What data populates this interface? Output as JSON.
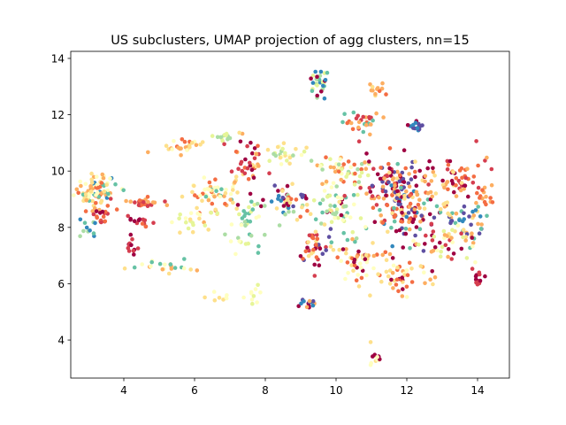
{
  "chart_data": {
    "type": "scatter",
    "title": "US subclusters, UMAP projection of agg clusters, nn=15",
    "xlabel": "",
    "ylabel": "",
    "xlim": [
      2.5,
      14.9
    ],
    "ylim": [
      2.65,
      14.25
    ],
    "x_ticks": [
      4,
      6,
      8,
      10,
      12,
      14
    ],
    "y_ticks": [
      4,
      6,
      8,
      10,
      12,
      14
    ],
    "x_tick_labels": [
      "4",
      "6",
      "8",
      "10",
      "12",
      "14"
    ],
    "y_tick_labels": [
      "4",
      "6",
      "8",
      "10",
      "12",
      "14"
    ],
    "grid": false,
    "legend": "none",
    "palette": "Spectral",
    "colors": [
      "#9e0142",
      "#d53e4f",
      "#f46d43",
      "#fdae61",
      "#fee08b",
      "#ffffbf",
      "#e6f598",
      "#abdda4",
      "#66c2a5",
      "#3288bd",
      "#5e4fa2"
    ],
    "clusters": [
      {
        "x": 3.2,
        "y": 9.3,
        "sx": 0.3,
        "sy": 0.3,
        "n": 90,
        "colors": [
          4,
          5,
          3,
          8,
          9,
          2
        ]
      },
      {
        "x": 3.0,
        "y": 7.9,
        "sx": 0.15,
        "sy": 0.15,
        "n": 12,
        "colors": [
          8,
          9,
          7
        ]
      },
      {
        "x": 3.4,
        "y": 8.4,
        "sx": 0.15,
        "sy": 0.2,
        "n": 15,
        "colors": [
          0,
          1,
          2
        ]
      },
      {
        "x": 4.5,
        "y": 8.9,
        "sx": 0.25,
        "sy": 0.1,
        "n": 25,
        "colors": [
          2,
          1,
          3
        ]
      },
      {
        "x": 4.5,
        "y": 8.2,
        "sx": 0.15,
        "sy": 0.1,
        "n": 15,
        "colors": [
          1,
          0,
          2
        ]
      },
      {
        "x": 4.2,
        "y": 7.4,
        "sx": 0.1,
        "sy": 0.15,
        "n": 12,
        "colors": [
          0,
          1
        ]
      },
      {
        "x": 5.2,
        "y": 6.6,
        "sx": 0.5,
        "sy": 0.1,
        "n": 22,
        "colors": [
          5,
          4,
          3,
          8
        ]
      },
      {
        "x": 5.7,
        "y": 10.9,
        "sx": 0.3,
        "sy": 0.15,
        "n": 25,
        "colors": [
          3,
          4,
          2,
          5
        ]
      },
      {
        "x": 6.8,
        "y": 11.2,
        "sx": 0.15,
        "sy": 0.1,
        "n": 12,
        "colors": [
          7,
          6
        ]
      },
      {
        "x": 6.4,
        "y": 9.1,
        "sx": 0.35,
        "sy": 0.35,
        "n": 55,
        "colors": [
          2,
          3,
          4,
          5,
          8
        ]
      },
      {
        "x": 5.9,
        "y": 8.2,
        "sx": 0.35,
        "sy": 0.25,
        "n": 20,
        "colors": [
          5,
          6,
          4
        ]
      },
      {
        "x": 6.6,
        "y": 5.5,
        "sx": 0.2,
        "sy": 0.1,
        "n": 8,
        "colors": [
          4,
          5
        ]
      },
      {
        "x": 7.4,
        "y": 10.3,
        "sx": 0.3,
        "sy": 0.5,
        "n": 45,
        "colors": [
          1,
          0,
          2,
          3,
          4
        ]
      },
      {
        "x": 7.5,
        "y": 8.0,
        "sx": 0.3,
        "sy": 0.5,
        "n": 35,
        "colors": [
          6,
          7,
          5,
          8
        ]
      },
      {
        "x": 7.7,
        "y": 5.6,
        "sx": 0.15,
        "sy": 0.15,
        "n": 10,
        "colors": [
          6,
          5
        ]
      },
      {
        "x": 8.6,
        "y": 9.0,
        "sx": 0.35,
        "sy": 0.4,
        "n": 50,
        "colors": [
          0,
          9,
          10,
          2,
          4,
          7
        ]
      },
      {
        "x": 8.4,
        "y": 10.6,
        "sx": 0.3,
        "sy": 0.2,
        "n": 25,
        "colors": [
          6,
          7,
          5,
          4
        ]
      },
      {
        "x": 9.5,
        "y": 13.1,
        "sx": 0.15,
        "sy": 0.25,
        "n": 30,
        "colors": [
          8,
          6,
          0,
          9,
          7
        ]
      },
      {
        "x": 9.2,
        "y": 5.3,
        "sx": 0.15,
        "sy": 0.1,
        "n": 15,
        "colors": [
          0,
          3,
          9,
          10
        ]
      },
      {
        "x": 9.4,
        "y": 7.3,
        "sx": 0.25,
        "sy": 0.35,
        "n": 40,
        "colors": [
          0,
          10,
          2,
          4,
          1
        ]
      },
      {
        "x": 10.0,
        "y": 8.6,
        "sx": 0.4,
        "sy": 0.4,
        "n": 60,
        "colors": [
          6,
          7,
          8,
          0,
          4,
          5
        ]
      },
      {
        "x": 10.2,
        "y": 10.0,
        "sx": 0.4,
        "sy": 0.3,
        "n": 50,
        "colors": [
          5,
          6,
          7,
          2,
          3
        ]
      },
      {
        "x": 10.7,
        "y": 11.7,
        "sx": 0.3,
        "sy": 0.2,
        "n": 30,
        "colors": [
          1,
          2,
          8,
          3
        ]
      },
      {
        "x": 10.7,
        "y": 6.9,
        "sx": 0.4,
        "sy": 0.3,
        "n": 40,
        "colors": [
          3,
          4,
          5,
          0,
          2
        ]
      },
      {
        "x": 11.2,
        "y": 12.9,
        "sx": 0.15,
        "sy": 0.1,
        "n": 12,
        "colors": [
          3,
          4,
          2
        ]
      },
      {
        "x": 11.1,
        "y": 3.4,
        "sx": 0.08,
        "sy": 0.15,
        "n": 12,
        "colors": [
          5,
          4,
          0
        ]
      },
      {
        "x": 11.5,
        "y": 9.5,
        "sx": 0.4,
        "sy": 0.5,
        "n": 80,
        "colors": [
          0,
          1,
          2,
          3,
          10
        ]
      },
      {
        "x": 12.0,
        "y": 8.6,
        "sx": 0.45,
        "sy": 0.6,
        "n": 120,
        "colors": [
          0,
          1,
          2,
          3,
          4,
          9,
          10,
          8
        ]
      },
      {
        "x": 12.3,
        "y": 11.6,
        "sx": 0.15,
        "sy": 0.1,
        "n": 15,
        "colors": [
          9,
          10,
          0
        ]
      },
      {
        "x": 11.9,
        "y": 6.3,
        "sx": 0.5,
        "sy": 0.3,
        "n": 50,
        "colors": [
          0,
          4,
          5,
          2,
          3
        ]
      },
      {
        "x": 13.3,
        "y": 9.7,
        "sx": 0.5,
        "sy": 0.4,
        "n": 70,
        "colors": [
          2,
          3,
          4,
          1,
          0
        ]
      },
      {
        "x": 13.6,
        "y": 8.2,
        "sx": 0.35,
        "sy": 0.35,
        "n": 50,
        "colors": [
          8,
          9,
          10,
          3,
          4
        ]
      },
      {
        "x": 13.1,
        "y": 7.4,
        "sx": 0.5,
        "sy": 0.3,
        "n": 40,
        "colors": [
          0,
          1,
          5,
          6,
          3
        ]
      },
      {
        "x": 14.0,
        "y": 6.1,
        "sx": 0.1,
        "sy": 0.15,
        "n": 15,
        "colors": [
          1,
          0
        ]
      },
      {
        "x": 14.2,
        "y": 9.1,
        "sx": 0.08,
        "sy": 0.2,
        "n": 12,
        "colors": [
          2,
          3
        ]
      }
    ]
  }
}
